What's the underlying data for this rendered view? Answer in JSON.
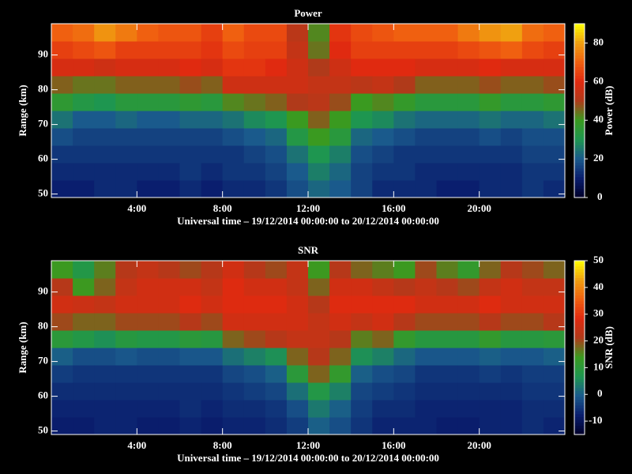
{
  "chart_data": [
    {
      "type": "heatmap",
      "title": "Power",
      "xlabel": "Universal time – 19/12/2014 00:00:00 to 20/12/2014 00:00:00",
      "ylabel": "Range (km)",
      "colorbar_label": "Power (dB)",
      "x": [
        0.5,
        1.5,
        2.5,
        3.5,
        4.5,
        5.5,
        6.5,
        7.5,
        8.5,
        9.5,
        10.5,
        11.5,
        12.5,
        13.5,
        14.5,
        15.5,
        16.5,
        17.5,
        18.5,
        19.5,
        20.5,
        21.5,
        22.5,
        23.5
      ],
      "y": [
        51.5,
        56.5,
        61.5,
        66.5,
        71.5,
        76.5,
        81.5,
        86.5,
        91.5,
        96.5
      ],
      "z": [
        [
          10,
          10,
          12,
          12,
          10,
          10,
          12,
          10,
          12,
          12,
          14,
          18,
          22,
          20,
          16,
          12,
          12,
          12,
          10,
          10,
          12,
          12,
          14,
          12
        ],
        [
          12,
          12,
          12,
          12,
          12,
          12,
          14,
          12,
          14,
          14,
          16,
          20,
          26,
          22,
          16,
          14,
          14,
          12,
          12,
          12,
          12,
          12,
          14,
          14
        ],
        [
          14,
          14,
          14,
          14,
          14,
          14,
          14,
          14,
          14,
          16,
          18,
          24,
          30,
          26,
          18,
          16,
          14,
          14,
          14,
          14,
          14,
          14,
          16,
          16
        ],
        [
          18,
          16,
          16,
          16,
          16,
          16,
          16,
          16,
          18,
          20,
          22,
          32,
          40,
          34,
          22,
          20,
          18,
          16,
          16,
          16,
          18,
          16,
          18,
          18
        ],
        [
          24,
          20,
          20,
          22,
          20,
          20,
          22,
          22,
          24,
          28,
          30,
          40,
          46,
          40,
          30,
          28,
          24,
          22,
          22,
          22,
          24,
          22,
          22,
          24
        ],
        [
          36,
          32,
          30,
          34,
          34,
          34,
          36,
          34,
          42,
          44,
          46,
          50,
          52,
          48,
          40,
          42,
          38,
          34,
          34,
          34,
          38,
          34,
          34,
          36
        ],
        [
          46,
          44,
          44,
          46,
          46,
          46,
          48,
          46,
          56,
          56,
          56,
          56,
          54,
          54,
          52,
          54,
          50,
          46,
          46,
          46,
          48,
          46,
          46,
          48
        ],
        [
          58,
          58,
          56,
          58,
          58,
          58,
          60,
          58,
          62,
          62,
          60,
          56,
          50,
          56,
          60,
          60,
          60,
          58,
          58,
          58,
          60,
          58,
          58,
          58
        ],
        [
          64,
          66,
          68,
          64,
          64,
          64,
          64,
          62,
          66,
          64,
          64,
          54,
          44,
          60,
          64,
          64,
          64,
          64,
          64,
          66,
          68,
          70,
          66,
          64
        ],
        [
          70,
          72,
          78,
          74,
          70,
          68,
          68,
          64,
          70,
          66,
          66,
          52,
          42,
          62,
          66,
          68,
          70,
          70,
          70,
          74,
          78,
          80,
          72,
          70
        ]
      ],
      "xlim": [
        0,
        24
      ],
      "ylim": [
        49,
        99
      ],
      "xticks": [
        {
          "value": 4,
          "label": "4:00"
        },
        {
          "value": 8,
          "label": "8:00"
        },
        {
          "value": 12,
          "label": "12:00"
        },
        {
          "value": 16,
          "label": "16:00"
        },
        {
          "value": 20,
          "label": "20:00"
        }
      ],
      "yticks": [
        50,
        60,
        70,
        80,
        90
      ],
      "clim": [
        0,
        90
      ],
      "cticks": [
        0,
        20,
        40,
        60,
        80
      ],
      "colormap": [
        "#00002a",
        "#0a1e6e",
        "#1a5a8c",
        "#1e9650",
        "#3a9a20",
        "#b03a1a",
        "#e02a10",
        "#f06010",
        "#f0a010",
        "#ffff00"
      ]
    },
    {
      "type": "heatmap",
      "title": "SNR",
      "xlabel": "Universal time – 19/12/2014 00:00:00 to 20/12/2014 00:00:00",
      "ylabel": "Range (km)",
      "colorbar_label": "SNR (dB)",
      "x": [
        0.5,
        1.5,
        2.5,
        3.5,
        4.5,
        5.5,
        6.5,
        7.5,
        8.5,
        9.5,
        10.5,
        11.5,
        12.5,
        13.5,
        14.5,
        15.5,
        16.5,
        17.5,
        18.5,
        19.5,
        20.5,
        21.5,
        22.5,
        23.5
      ],
      "y": [
        51.5,
        56.5,
        61.5,
        66.5,
        71.5,
        76.5,
        81.5,
        86.5,
        91.5,
        96.5
      ],
      "z": [
        [
          -8,
          -8,
          -7,
          -7,
          -8,
          -8,
          -7,
          -8,
          -7,
          -7,
          -6,
          -4,
          0,
          -2,
          -5,
          -7,
          -7,
          -7,
          -8,
          -8,
          -7,
          -7,
          -6,
          -7
        ],
        [
          -7,
          -7,
          -7,
          -7,
          -7,
          -7,
          -6,
          -7,
          -6,
          -6,
          -5,
          -2,
          3,
          0,
          -4,
          -6,
          -6,
          -7,
          -7,
          -7,
          -7,
          -7,
          -6,
          -6
        ],
        [
          -6,
          -6,
          -6,
          -6,
          -6,
          -6,
          -6,
          -6,
          -5,
          -4,
          -3,
          2,
          8,
          4,
          -3,
          -4,
          -5,
          -6,
          -6,
          -6,
          -6,
          -6,
          -5,
          -5
        ],
        [
          -4,
          -5,
          -5,
          -5,
          -5,
          -5,
          -5,
          -5,
          -3,
          -2,
          0,
          10,
          18,
          12,
          0,
          -2,
          -3,
          -5,
          -5,
          -5,
          -4,
          -5,
          -4,
          -4
        ],
        [
          0,
          -2,
          -2,
          -1,
          -2,
          -2,
          -1,
          -1,
          2,
          4,
          6,
          18,
          22,
          18,
          6,
          4,
          1,
          -1,
          -1,
          -1,
          0,
          -1,
          -1,
          0
        ],
        [
          10,
          8,
          6,
          9,
          8,
          8,
          10,
          9,
          18,
          20,
          22,
          24,
          24,
          22,
          16,
          18,
          12,
          9,
          9,
          9,
          12,
          9,
          9,
          10
        ],
        [
          20,
          18,
          18,
          20,
          20,
          20,
          22,
          20,
          26,
          26,
          26,
          26,
          24,
          26,
          24,
          26,
          22,
          20,
          20,
          20,
          22,
          20,
          20,
          22
        ],
        [
          26,
          25,
          24,
          26,
          26,
          26,
          28,
          26,
          28,
          28,
          28,
          26,
          22,
          28,
          28,
          28,
          28,
          26,
          26,
          26,
          28,
          26,
          26,
          26
        ],
        [
          22,
          14,
          18,
          24,
          26,
          26,
          26,
          24,
          28,
          26,
          26,
          24,
          18,
          26,
          26,
          24,
          22,
          24,
          22,
          20,
          24,
          26,
          24,
          24
        ],
        [
          14,
          8,
          16,
          22,
          24,
          22,
          20,
          22,
          26,
          22,
          20,
          24,
          14,
          22,
          18,
          16,
          14,
          20,
          16,
          12,
          18,
          22,
          20,
          18
        ]
      ],
      "xlim": [
        0,
        24
      ],
      "ylim": [
        49,
        99
      ],
      "xticks": [
        {
          "value": 4,
          "label": "4:00"
        },
        {
          "value": 8,
          "label": "8:00"
        },
        {
          "value": 12,
          "label": "12:00"
        },
        {
          "value": 16,
          "label": "16:00"
        },
        {
          "value": 20,
          "label": "20:00"
        }
      ],
      "yticks": [
        50,
        60,
        70,
        80,
        90
      ],
      "clim": [
        -15,
        50
      ],
      "cticks": [
        -10,
        0,
        10,
        20,
        30,
        40,
        50
      ],
      "colormap": [
        "#00002a",
        "#0a1e6e",
        "#1a5a8c",
        "#1e9650",
        "#3a9a20",
        "#b03a1a",
        "#e02a10",
        "#f06010",
        "#f0a010",
        "#ffff00"
      ]
    }
  ]
}
